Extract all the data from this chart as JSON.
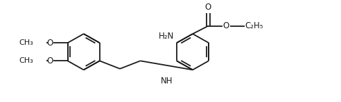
{
  "bg_color": "#ffffff",
  "line_color": "#1a1a1a",
  "line_width": 1.3,
  "text_color": "#1a1a1a",
  "font_size": 8.5,
  "fig_width": 4.92,
  "fig_height": 1.48,
  "xlim": [
    0,
    9.2
  ],
  "ylim": [
    0,
    2.8
  ]
}
